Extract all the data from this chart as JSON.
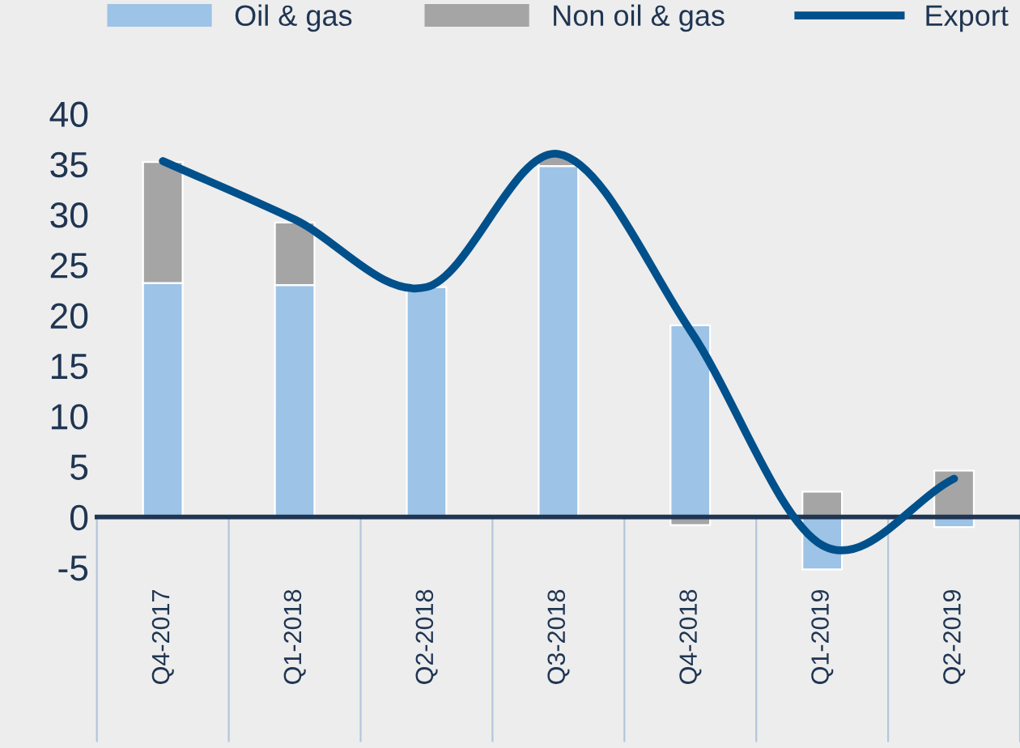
{
  "chart_data": {
    "type": "bar",
    "stacked": true,
    "categories": [
      "Q4-2017",
      "Q1-2018",
      "Q2-2018",
      "Q3-2018",
      "Q4-2018",
      "Q1-2019",
      "Q2-2019"
    ],
    "series": [
      {
        "name": "Oil & gas",
        "color": "#9dc3e6",
        "values": [
          23.2,
          23.0,
          22.8,
          34.8,
          19.0,
          -5.2,
          -1.0
        ]
      },
      {
        "name": "Non oil & gas",
        "color": "#a5a5a5",
        "values": [
          12.0,
          6.2,
          null,
          0.9,
          -0.8,
          2.5,
          4.6
        ]
      },
      {
        "name": "Export",
        "type": "line",
        "color": "#00508c",
        "values": [
          35.3,
          29.5,
          22.8,
          36.0,
          18.5,
          -2.8,
          3.8
        ]
      }
    ],
    "ylim": [
      -6,
      40
    ],
    "yticks": [
      -5,
      0,
      5,
      10,
      15,
      20,
      25,
      30,
      35,
      40
    ],
    "grid": false,
    "legend": "top",
    "marker": "none",
    "line_style": "solid"
  }
}
